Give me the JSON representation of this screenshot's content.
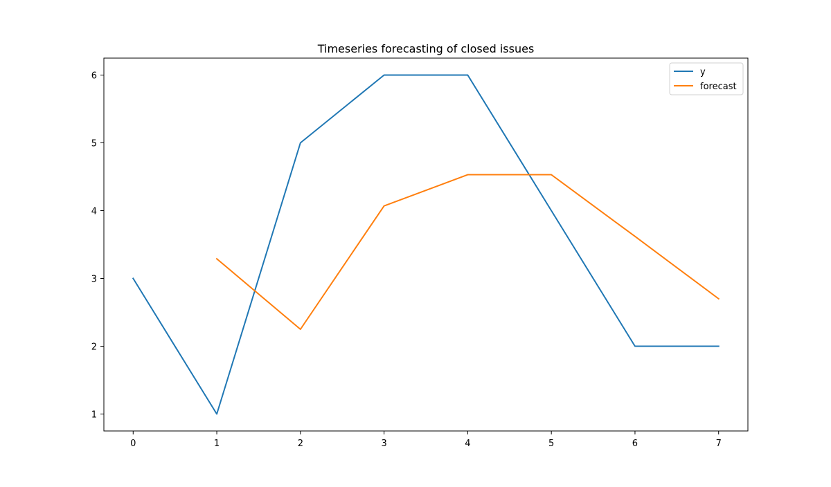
{
  "chart_data": {
    "type": "line",
    "title": "Timeseries forecasting of closed issues",
    "xlabel": "",
    "ylabel": "",
    "xlim": [
      -0.35,
      7.35
    ],
    "ylim": [
      0.75,
      6.25
    ],
    "xticks": [
      0,
      1,
      2,
      3,
      4,
      5,
      6,
      7
    ],
    "yticks": [
      1,
      2,
      3,
      4,
      5,
      6
    ],
    "grid": false,
    "legend_position": "top-right",
    "series": [
      {
        "name": "y",
        "color": "#1f77b4",
        "x": [
          0,
          1,
          2,
          3,
          4,
          5,
          6,
          7
        ],
        "y": [
          3,
          1,
          5,
          6,
          6,
          4,
          2,
          2
        ]
      },
      {
        "name": "forecast",
        "color": "#ff7f0e",
        "x": [
          1,
          2,
          3,
          4,
          5,
          6,
          7
        ],
        "y": [
          3.29,
          2.25,
          4.07,
          4.53,
          4.53,
          3.62,
          2.7
        ]
      }
    ]
  }
}
